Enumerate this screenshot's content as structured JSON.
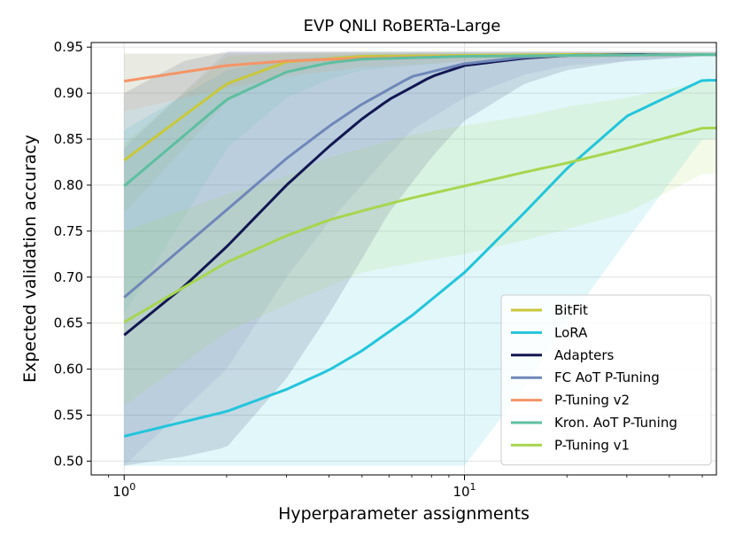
{
  "chart_data": {
    "type": "line",
    "title": "EVP QNLI RoBERTa-Large",
    "xlabel": "Hyperparameter assignments",
    "ylabel": "Expected validation accuracy",
    "xscale": "log",
    "xlim": [
      0.8,
      55
    ],
    "ylim": [
      0.485,
      0.955
    ],
    "x_ticks": [
      {
        "value": 1,
        "base": "10",
        "exp": "0"
      },
      {
        "value": 10,
        "base": "10",
        "exp": "1"
      }
    ],
    "y_ticks": [
      0.5,
      0.55,
      0.6,
      0.65,
      0.7,
      0.75,
      0.8,
      0.85,
      0.9,
      0.95
    ],
    "y_tick_labels": [
      "0.50",
      "0.55",
      "0.60",
      "0.65",
      "0.70",
      "0.75",
      "0.80",
      "0.85",
      "0.90",
      "0.95"
    ],
    "grid": true,
    "legend_position": "bottom-right",
    "band_max": 0.945,
    "series": [
      {
        "name": "BitFit",
        "color": "#c8c83a",
        "x": [
          1,
          2,
          3,
          5,
          10,
          20,
          50
        ],
        "y": [
          0.827,
          0.91,
          0.934,
          0.94,
          0.941,
          0.942,
          0.942
        ],
        "lower": [
          0.77,
          0.89,
          0.925,
          0.935,
          0.938,
          0.94,
          0.94
        ],
        "upper": [
          0.845,
          0.94,
          0.944,
          0.945,
          0.945,
          0.945,
          0.945
        ]
      },
      {
        "name": "LoRA",
        "color": "#22c5dc",
        "x": [
          1,
          2,
          3,
          4,
          5,
          7,
          10,
          15,
          20,
          30,
          50
        ],
        "y": [
          0.527,
          0.554,
          0.578,
          0.599,
          0.62,
          0.658,
          0.705,
          0.77,
          0.818,
          0.875,
          0.914
        ],
        "lower": [
          0.495,
          0.495,
          0.495,
          0.495,
          0.495,
          0.495,
          0.495,
          0.58,
          0.65,
          0.74,
          0.85
        ],
        "upper": [
          0.86,
          0.925,
          0.937,
          0.94,
          0.942,
          0.943,
          0.943,
          0.943,
          0.943,
          0.943,
          0.943
        ]
      },
      {
        "name": "Adapters",
        "color": "#121652",
        "x": [
          1,
          1.5,
          2,
          3,
          4,
          5,
          6,
          8,
          10,
          15,
          20,
          30,
          50
        ],
        "y": [
          0.637,
          0.69,
          0.733,
          0.8,
          0.842,
          0.872,
          0.893,
          0.918,
          0.93,
          0.938,
          0.941,
          0.942,
          0.942
        ],
        "lower": [
          0.495,
          0.505,
          0.515,
          0.59,
          0.66,
          0.72,
          0.77,
          0.83,
          0.87,
          0.91,
          0.925,
          0.935,
          0.94
        ],
        "upper": [
          0.9,
          0.935,
          0.945,
          0.945,
          0.945,
          0.945,
          0.945,
          0.945,
          0.945,
          0.945,
          0.945,
          0.945,
          0.945
        ]
      },
      {
        "name": "FC AoT P-Tuning",
        "color": "#6f87b8",
        "x": [
          1,
          2,
          3,
          4,
          5,
          7,
          10,
          15,
          20,
          50
        ],
        "y": [
          0.678,
          0.773,
          0.829,
          0.864,
          0.888,
          0.918,
          0.932,
          0.939,
          0.941,
          0.942
        ],
        "lower": [
          0.495,
          0.6,
          0.7,
          0.76,
          0.8,
          0.86,
          0.895,
          0.92,
          0.93,
          0.94
        ],
        "upper": [
          0.84,
          0.945,
          0.945,
          0.945,
          0.945,
          0.945,
          0.945,
          0.945,
          0.945,
          0.945
        ]
      },
      {
        "name": "P-Tuning v2",
        "color": "#f59466",
        "x": [
          1,
          2,
          3,
          5,
          10,
          20,
          50
        ],
        "y": [
          0.913,
          0.93,
          0.935,
          0.938,
          0.94,
          0.941,
          0.942
        ],
        "lower": [
          0.88,
          0.905,
          0.918,
          0.928,
          0.934,
          0.938,
          0.94
        ],
        "upper": [
          0.943,
          0.943,
          0.943,
          0.943,
          0.943,
          0.943,
          0.943
        ]
      },
      {
        "name": "Kron. AoT P-Tuning",
        "color": "#5dbfa0",
        "x": [
          1,
          2,
          3,
          4,
          5,
          10,
          20,
          50
        ],
        "y": [
          0.799,
          0.893,
          0.923,
          0.933,
          0.937,
          0.94,
          0.941,
          0.942
        ],
        "lower": [
          0.66,
          0.84,
          0.895,
          0.915,
          0.925,
          0.935,
          0.938,
          0.94
        ],
        "upper": [
          0.943,
          0.943,
          0.943,
          0.943,
          0.943,
          0.943,
          0.943,
          0.943
        ]
      },
      {
        "name": "P-Tuning v1",
        "color": "#a6d64f",
        "x": [
          1,
          2,
          3,
          4,
          5,
          7,
          10,
          15,
          20,
          30,
          50
        ],
        "y": [
          0.651,
          0.716,
          0.745,
          0.762,
          0.772,
          0.786,
          0.799,
          0.814,
          0.824,
          0.84,
          0.862
        ],
        "lower": [
          0.56,
          0.64,
          0.67,
          0.69,
          0.705,
          0.715,
          0.725,
          0.74,
          0.752,
          0.77,
          0.812
        ],
        "upper": [
          0.75,
          0.79,
          0.81,
          0.83,
          0.84,
          0.855,
          0.865,
          0.875,
          0.885,
          0.895,
          0.912
        ]
      }
    ]
  }
}
